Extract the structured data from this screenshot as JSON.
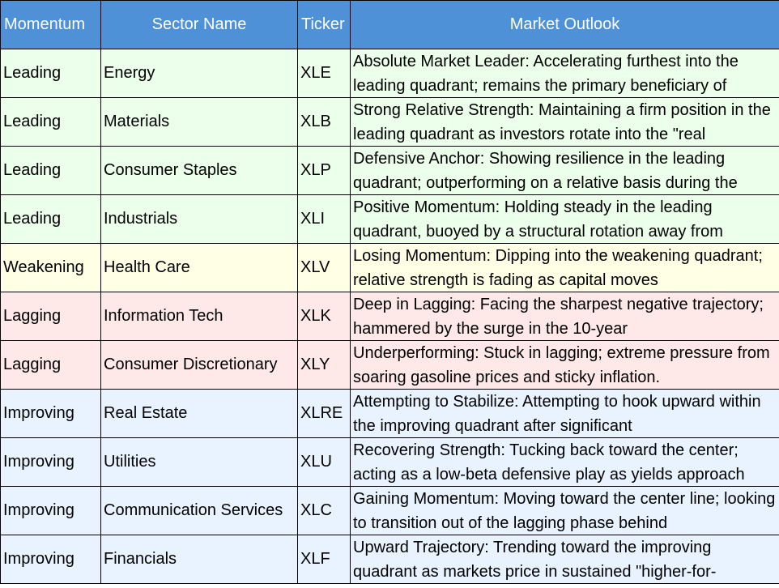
{
  "headers": {
    "momentum": "Momentum",
    "sector": "Sector Name",
    "ticker": "Ticker",
    "outlook": "Market Outlook"
  },
  "colors": {
    "header": "#4f91d6",
    "Leading": "#ebffea",
    "Weakening": "#ffffe5",
    "Lagging": "#ffe8e8",
    "Improving": "#e8f3ff"
  },
  "rows": [
    {
      "momentum": "Leading",
      "sector": "Energy",
      "ticker": "XLE",
      "outlook": "Absolute Market Leader: Accelerating furthest into the leading quadrant; remains the primary beneficiary of"
    },
    {
      "momentum": "Leading",
      "sector": "Materials",
      "ticker": "XLB",
      "outlook": "Strong Relative Strength: Maintaining a firm position in the leading quadrant as investors rotate into the \"real"
    },
    {
      "momentum": "Leading",
      "sector": "Consumer Staples",
      "ticker": "XLP",
      "outlook": "Defensive Anchor: Showing resilience in the leading quadrant; outperforming on a relative basis during the"
    },
    {
      "momentum": "Leading",
      "sector": "Industrials",
      "ticker": "XLI",
      "outlook": "Positive Momentum: Holding steady in the leading quadrant, buoyed by a structural rotation away from"
    },
    {
      "momentum": "Weakening",
      "sector": "Health Care",
      "ticker": "XLV",
      "outlook": "Losing Momentum: Dipping into the weakening quadrant; relative strength is fading as capital moves"
    },
    {
      "momentum": "Lagging",
      "sector": "Information Tech",
      "ticker": "XLK",
      "outlook": "Deep in Lagging: Facing the sharpest negative trajectory; hammered by the surge in the 10-year"
    },
    {
      "momentum": "Lagging",
      "sector": "Consumer Discretionary",
      "ticker": "XLY",
      "outlook": "Underperforming: Stuck in lagging; extreme pressure from soaring gasoline prices and sticky inflation."
    },
    {
      "momentum": "Improving",
      "sector": "Real Estate",
      "ticker": "XLRE",
      "outlook": "Attempting to Stabilize: Attempting to hook upward within the improving quadrant after significant"
    },
    {
      "momentum": "Improving",
      "sector": "Utilities",
      "ticker": "XLU",
      "outlook": "Recovering Strength: Tucking back toward the center; acting as a low-beta defensive play as yields approach"
    },
    {
      "momentum": "Improving",
      "sector": "Communication Services",
      "ticker": "XLC",
      "outlook": "Gaining Momentum: Moving toward the center line; looking to transition out of the lagging phase behind"
    },
    {
      "momentum": "Improving",
      "sector": "Financials",
      "ticker": "XLF",
      "outlook": "Upward Trajectory: Trending toward the improving quadrant as markets price in sustained \"higher-for-"
    }
  ]
}
